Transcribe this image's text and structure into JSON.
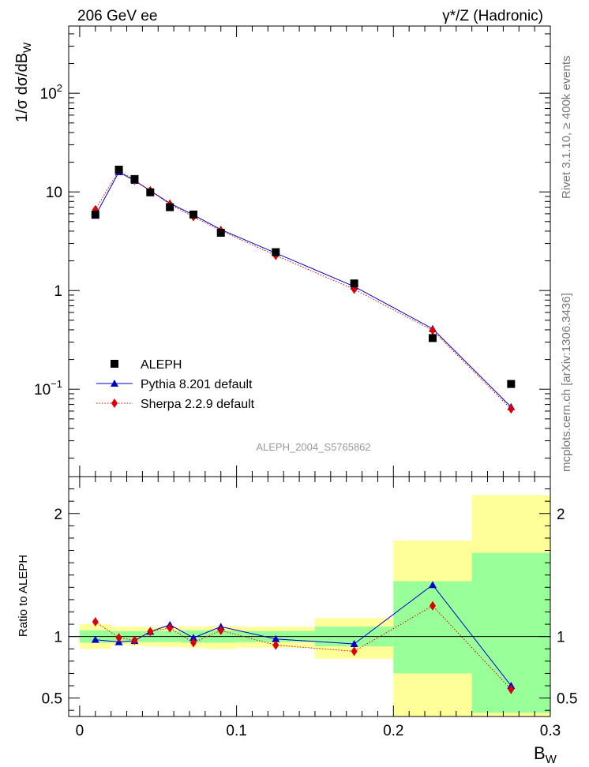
{
  "header": {
    "left": "206 GeV ee",
    "right": "γ*/Z (Hadronic)"
  },
  "side_text": {
    "rivet": "Rivet 3.1.10, ≥ 400k events",
    "source": "mcplots.cern.ch [arXiv:1306.3436]"
  },
  "watermark": "ALEPH_2004_S5765862",
  "colors": {
    "data": "#000000",
    "pythia": "#0000cc",
    "sherpa": "#dd0000",
    "band_inner": "#99ff99",
    "band_outer": "#ffff99"
  },
  "chart_data": [
    {
      "type": "scatter",
      "log_y": true,
      "ylabel_parts": [
        "1/σ dσ/dB",
        "W"
      ],
      "xlim": [
        -0.007,
        0.3
      ],
      "ylim": [
        0.013,
        480
      ],
      "yticks_major": [
        {
          "v": 0.1,
          "b": "10",
          "e": "−1"
        },
        {
          "v": 1,
          "b": "1",
          "e": ""
        },
        {
          "v": 10,
          "b": "10",
          "e": ""
        },
        {
          "v": 100,
          "b": "10",
          "e": "2"
        }
      ],
      "x": [
        0.01,
        0.025,
        0.035,
        0.045,
        0.0575,
        0.0725,
        0.09,
        0.125,
        0.175,
        0.225,
        0.275
      ],
      "series": [
        {
          "name": "ALEPH",
          "marker": "square",
          "values": [
            5.9,
            16.8,
            13.5,
            9.9,
            7.0,
            5.9,
            3.85,
            2.45,
            1.18,
            0.33,
            0.113
          ]
        },
        {
          "name": "Pythia 8.201 default",
          "marker": "triangle",
          "values": [
            5.75,
            15.9,
            13.0,
            10.3,
            7.65,
            5.85,
            4.15,
            2.4,
            1.1,
            0.41,
            0.066
          ]
        },
        {
          "name": "Sherpa 2.2.9 default",
          "marker": "diamond",
          "values": [
            6.6,
            16.6,
            13.1,
            10.3,
            7.5,
            5.6,
            4.05,
            2.27,
            1.03,
            0.395,
            0.063
          ]
        }
      ]
    },
    {
      "type": "line",
      "ylabel": "Ratio to ALEPH",
      "xlabel_parts": [
        "B",
        "W"
      ],
      "xlim": [
        -0.007,
        0.3
      ],
      "ylim": [
        0.35,
        2.3
      ],
      "xticks": [
        "0",
        "0.1",
        "0.2",
        "0.3"
      ],
      "xtick_values": [
        0,
        0.1,
        0.2,
        0.3
      ],
      "yticks": [
        "0.5",
        "1",
        "2"
      ],
      "ytick_values": [
        0.5,
        1,
        2
      ],
      "bins": [
        {
          "lo": 0.0,
          "hi": 0.02,
          "inner": [
            0.95,
            1.05
          ],
          "outer": [
            0.9,
            1.1
          ]
        },
        {
          "lo": 0.02,
          "hi": 0.03,
          "inner": [
            0.955,
            1.045
          ],
          "outer": [
            0.93,
            1.08
          ]
        },
        {
          "lo": 0.03,
          "hi": 0.04,
          "inner": [
            0.955,
            1.045
          ],
          "outer": [
            0.925,
            1.08
          ]
        },
        {
          "lo": 0.04,
          "hi": 0.05,
          "inner": [
            0.955,
            1.045
          ],
          "outer": [
            0.92,
            1.075
          ]
        },
        {
          "lo": 0.05,
          "hi": 0.065,
          "inner": [
            0.955,
            1.045
          ],
          "outer": [
            0.915,
            1.08
          ]
        },
        {
          "lo": 0.065,
          "hi": 0.08,
          "inner": [
            0.95,
            1.05
          ],
          "outer": [
            0.91,
            1.08
          ]
        },
        {
          "lo": 0.08,
          "hi": 0.1,
          "inner": [
            0.95,
            1.05
          ],
          "outer": [
            0.9,
            1.085
          ]
        },
        {
          "lo": 0.1,
          "hi": 0.15,
          "inner": [
            0.955,
            1.045
          ],
          "outer": [
            0.91,
            1.08
          ]
        },
        {
          "lo": 0.15,
          "hi": 0.2,
          "inner": [
            0.92,
            1.08
          ],
          "outer": [
            0.82,
            1.15
          ]
        },
        {
          "lo": 0.2,
          "hi": 0.25,
          "inner": [
            0.7,
            1.45
          ],
          "outer": [
            0.25,
            1.78
          ]
        },
        {
          "lo": 0.25,
          "hi": 0.3,
          "inner": [
            0.38,
            1.68
          ],
          "outer": [
            0.25,
            2.15
          ]
        }
      ],
      "x": [
        0.01,
        0.025,
        0.035,
        0.045,
        0.0575,
        0.0725,
        0.09,
        0.125,
        0.175,
        0.225,
        0.275
      ],
      "series": [
        {
          "name": "Pythia 8.201 default",
          "values": [
            0.975,
            0.955,
            0.965,
            1.04,
            1.095,
            0.99,
            1.08,
            0.98,
            0.94,
            1.42,
            0.6
          ]
        },
        {
          "name": "Sherpa 2.2.9 default",
          "values": [
            1.12,
            0.99,
            0.97,
            1.04,
            1.07,
            0.95,
            1.05,
            0.93,
            0.88,
            1.25,
            0.57
          ]
        }
      ]
    }
  ]
}
